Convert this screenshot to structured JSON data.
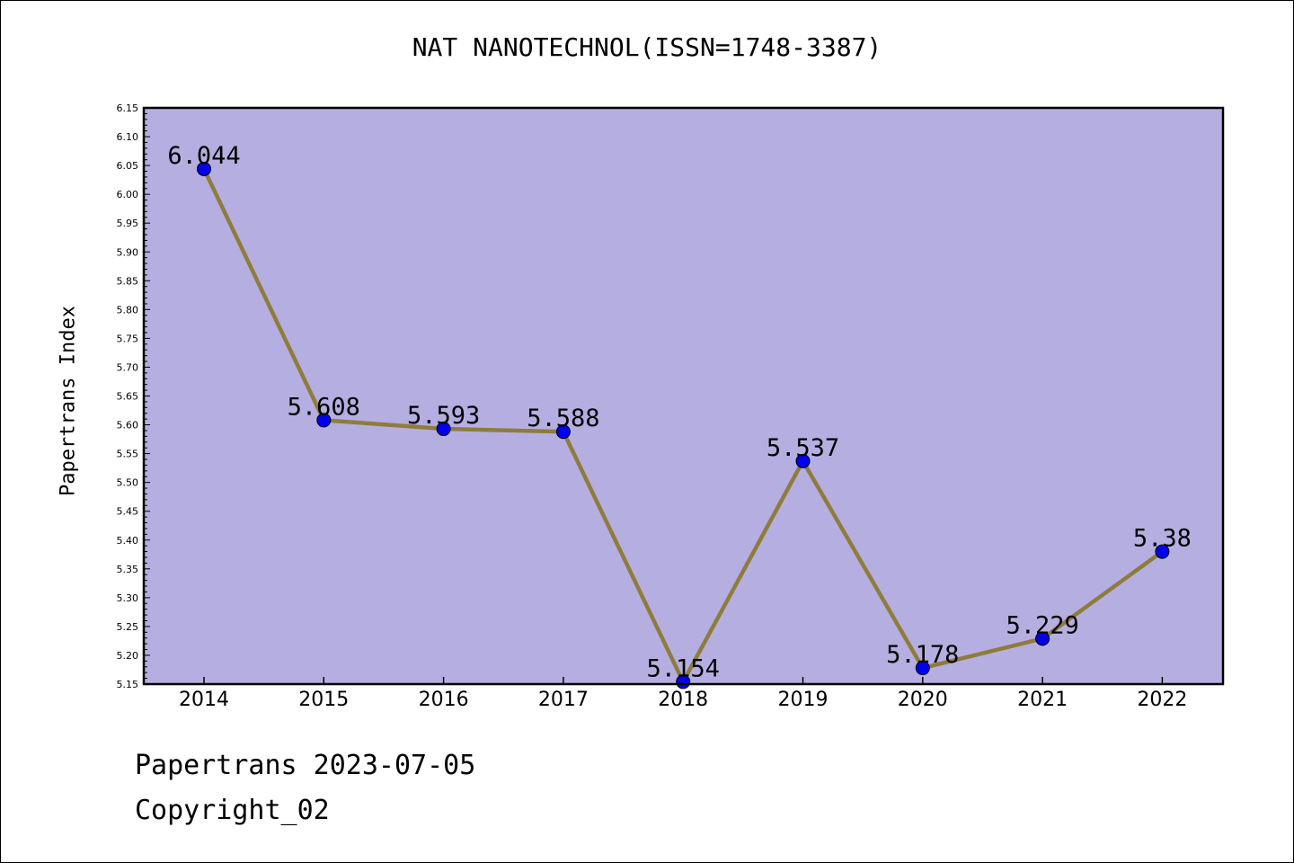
{
  "chart_data": {
    "type": "line",
    "title": "NAT NANOTECHNOL(ISSN=1748-3387)",
    "ylabel": "Papertrans Index",
    "xlabel": "",
    "x": [
      "2014",
      "2015",
      "2016",
      "2017",
      "2018",
      "2019",
      "2020",
      "2021",
      "2022"
    ],
    "series": [
      {
        "values": [
          6.044,
          5.608,
          5.593,
          5.588,
          5.154,
          5.537,
          5.178,
          5.229,
          5.38
        ]
      }
    ],
    "data_labels": [
      "6.044",
      "5.608",
      "5.593",
      "5.588",
      "5.154",
      "5.537",
      "5.178",
      "5.229",
      "5.38"
    ],
    "ylim": [
      5.15,
      6.15
    ],
    "yticks": [
      "5.15",
      "5.20",
      "5.25",
      "5.30",
      "5.35",
      "5.40",
      "5.45",
      "5.50",
      "5.55",
      "5.60",
      "5.65",
      "5.70",
      "5.75",
      "5.80",
      "5.85",
      "5.90",
      "5.95",
      "6.00",
      "6.05",
      "6.10",
      "6.15"
    ],
    "grid": false,
    "colors": {
      "plot_background": "#b5afe1",
      "line": "#8f7c3c",
      "marker": "#0000ee"
    }
  },
  "footer": {
    "line1": "Papertrans 2023-07-05",
    "line2": "Copyright_02"
  }
}
